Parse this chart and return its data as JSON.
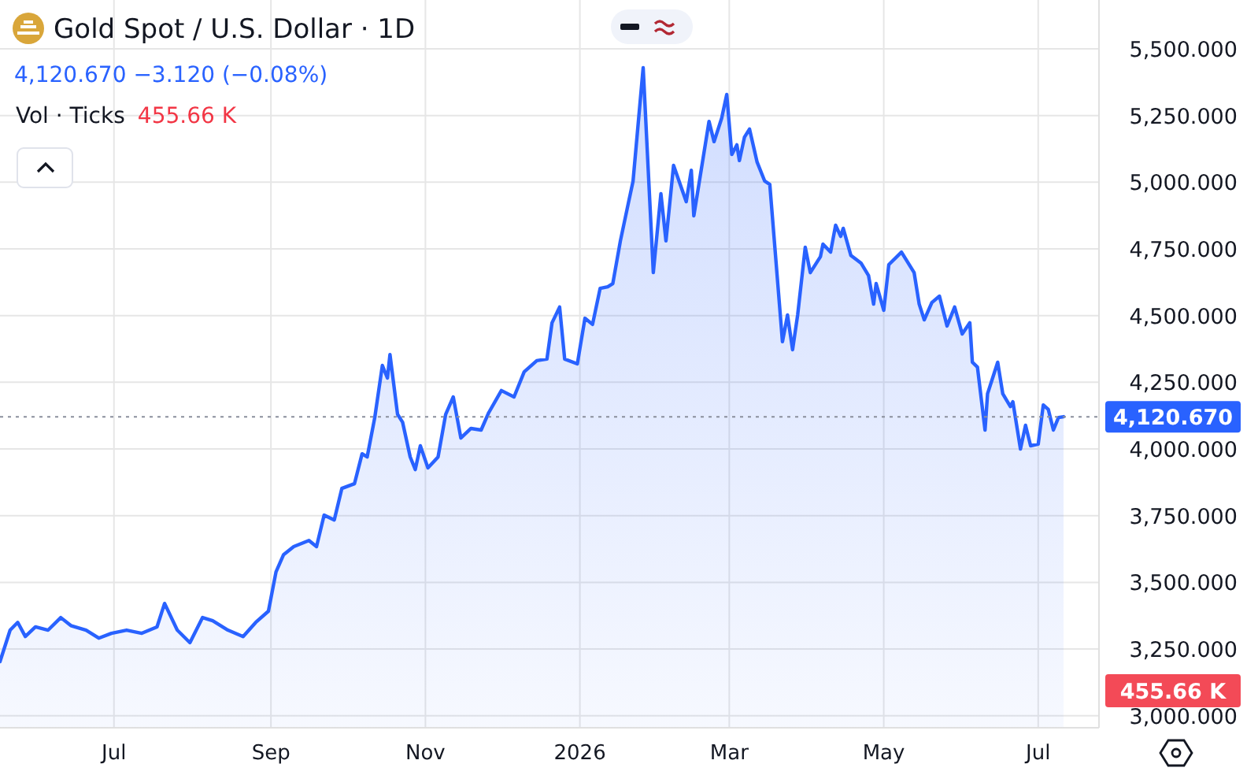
{
  "chart_data": {
    "type": "area",
    "title": "Gold Spot / U.S. Dollar · 1D",
    "subtitle": "4,120.670 −3.120 (−0.08%)",
    "annotations": [
      "Vol · Ticks",
      "455.66 K",
      "455.66 K"
    ],
    "x": [
      "2025-05-17",
      "2025-05-21",
      "2025-05-24",
      "2025-05-27",
      "2025-05-31",
      "2025-06-05",
      "2025-06-10",
      "2025-06-14",
      "2025-06-20",
      "2025-06-25",
      "2025-06-30",
      "2025-07-06",
      "2025-07-12",
      "2025-07-18",
      "2025-07-21",
      "2025-07-26",
      "2025-07-31",
      "2025-08-05",
      "2025-08-09",
      "2025-08-15",
      "2025-08-21",
      "2025-08-26",
      "2025-08-31",
      "2025-09-03",
      "2025-09-06",
      "2025-09-10",
      "2025-09-16",
      "2025-09-19",
      "2025-09-22",
      "2025-09-26",
      "2025-09-29",
      "2025-10-04",
      "2025-10-07",
      "2025-10-09",
      "2025-10-12",
      "2025-10-15",
      "2025-10-17",
      "2025-10-18",
      "2025-10-21",
      "2025-10-23",
      "2025-10-26",
      "2025-10-28",
      "2025-10-30",
      "2025-11-02",
      "2025-11-06",
      "2025-11-09",
      "2025-11-12",
      "2025-11-15",
      "2025-11-19",
      "2025-11-23",
      "2025-11-26",
      "2025-12-01",
      "2025-12-06",
      "2025-12-10",
      "2025-12-15",
      "2025-12-19",
      "2025-12-21",
      "2025-12-24",
      "2025-12-26",
      "2025-12-31",
      "2026-01-03",
      "2026-01-06",
      "2026-01-09",
      "2026-01-12",
      "2026-01-14",
      "2026-01-17",
      "2026-01-20",
      "2026-01-22",
      "2026-01-26",
      "2026-01-30",
      "2026-02-02",
      "2026-02-04",
      "2026-02-07",
      "2026-02-12",
      "2026-02-14",
      "2026-02-15",
      "2026-02-21",
      "2026-02-23",
      "2026-02-26",
      "2026-02-28",
      "2026-03-02",
      "2026-03-04",
      "2026-03-05",
      "2026-03-07",
      "2026-03-09",
      "2026-03-12",
      "2026-03-15",
      "2026-03-17",
      "2026-03-22",
      "2026-03-24",
      "2026-03-26",
      "2026-03-28",
      "2026-03-31",
      "2026-04-02",
      "2026-04-06",
      "2026-04-07",
      "2026-04-10",
      "2026-04-12",
      "2026-04-14",
      "2026-04-15",
      "2026-04-18",
      "2026-04-22",
      "2026-04-25",
      "2026-04-27",
      "2026-04-28",
      "2026-05-01",
      "2026-05-03",
      "2026-05-08",
      "2026-05-13",
      "2026-05-15",
      "2026-05-17",
      "2026-05-20",
      "2026-05-23",
      "2026-05-26",
      "2026-05-29",
      "2026-06-01",
      "2026-06-04",
      "2026-06-05",
      "2026-06-07",
      "2026-06-10",
      "2026-06-11",
      "2026-06-15",
      "2026-06-17",
      "2026-06-20",
      "2026-06-21",
      "2026-06-24",
      "2026-06-26",
      "2026-06-28",
      "2026-07-01",
      "2026-07-03",
      "2026-07-05",
      "2026-07-07",
      "2026-07-09",
      "2026-07-11"
    ],
    "series": [
      {
        "color": "#2962ff",
        "values": [
          3203,
          3321,
          3350,
          3297,
          3333,
          3321,
          3368,
          3338,
          3321,
          3291,
          3309,
          3321,
          3309,
          3333,
          3421,
          3321,
          3274,
          3368,
          3356,
          3321,
          3297,
          3350,
          3392,
          3539,
          3604,
          3634,
          3657,
          3634,
          3752,
          3734,
          3852,
          3870,
          3982,
          3970,
          4118,
          4313,
          4266,
          4354,
          4130,
          4100,
          3970,
          3923,
          4012,
          3929,
          3970,
          4130,
          4195,
          4041,
          4077,
          4071,
          4136,
          4219,
          4195,
          4289,
          4331,
          4337,
          4473,
          4532,
          4337,
          4319,
          4490,
          4467,
          4602,
          4608,
          4620,
          4780,
          4915,
          5004,
          5429,
          4661,
          4957,
          4780,
          5063,
          4927,
          5045,
          4874,
          5228,
          5152,
          5240,
          5329,
          5104,
          5140,
          5081,
          5169,
          5199,
          5075,
          5004,
          4992,
          4402,
          4502,
          4372,
          4502,
          4756,
          4661,
          4721,
          4768,
          4738,
          4839,
          4797,
          4827,
          4726,
          4697,
          4650,
          4543,
          4620,
          4520,
          4691,
          4738,
          4661,
          4543,
          4484,
          4549,
          4573,
          4461,
          4532,
          4431,
          4473,
          4325,
          4307,
          4071,
          4207,
          4325,
          4207,
          4159,
          4177,
          4000,
          4089,
          4012,
          4018,
          4165,
          4148,
          4071,
          4118,
          4121
        ]
      }
    ],
    "xlim": [
      "2025-05-17",
      "2026-07-25"
    ],
    "xticks": [
      {
        "value": "2025-07-01",
        "label": "Jul"
      },
      {
        "value": "2025-09-01",
        "label": "Sep"
      },
      {
        "value": "2025-11-01",
        "label": "Nov"
      },
      {
        "value": "2026-01-01",
        "label": "2026"
      },
      {
        "value": "2026-03-01",
        "label": "Mar"
      },
      {
        "value": "2026-05-01",
        "label": "May"
      },
      {
        "value": "2026-07-01",
        "label": "Jul"
      }
    ],
    "ylim": [
      2955,
      5683
    ],
    "yticks": [
      {
        "value": 3000,
        "label": "3,000.000"
      },
      {
        "value": 3250,
        "label": "3,250.000"
      },
      {
        "value": 3500,
        "label": "3,500.000"
      },
      {
        "value": 3750,
        "label": "3,750.000"
      },
      {
        "value": 4000,
        "label": "4,000.000"
      },
      {
        "value": 4250,
        "label": "4,250.000"
      },
      {
        "value": 4500,
        "label": "4,500.000"
      },
      {
        "value": 4750,
        "label": "4,750.000"
      },
      {
        "value": 5000,
        "label": "5,000.000"
      },
      {
        "value": 5250,
        "label": "5,250.000"
      },
      {
        "value": 5500,
        "label": "5,500.000"
      }
    ],
    "ref_lines": [
      {
        "axis": "y",
        "value": 4120.67,
        "label": "4,120.670",
        "color": "#8a8f9c",
        "line_style": "dotted"
      }
    ],
    "grid": true,
    "marker": "none",
    "line_style": "solid"
  }
}
